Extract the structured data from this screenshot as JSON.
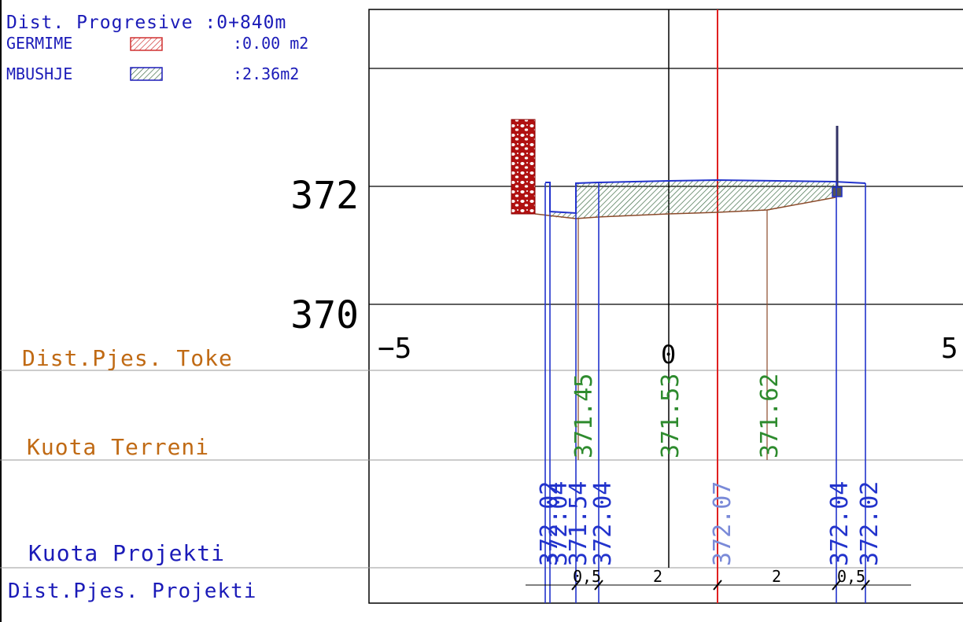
{
  "legend": {
    "dist_progresive": "Dist. Progresive :0+840m",
    "germime_label": "GERMIME",
    "germime_value": ":0.00 m2",
    "mbushje_label": "MBUSHJE",
    "mbushje_value": ":2.36m2"
  },
  "axis": {
    "elev_372": "372",
    "elev_370": "370",
    "off_neg5": "−5",
    "off_0": "0",
    "off_5": "5"
  },
  "rows": {
    "dist_toke": "Dist.Pjes. Toke",
    "kuota_terreni": "Kuota Terreni",
    "kuota_projekti": "Kuota Projekti",
    "dist_projekti": "Dist.Pjes. Projekti"
  },
  "terrain_elevations": [
    "371.45",
    "371.53",
    "371.62"
  ],
  "project_elevations": [
    "372.02",
    "372.04",
    "371.54",
    "372.04",
    "372.07",
    "372.04",
    "372.02"
  ],
  "project_distances": [
    "0,5",
    "2",
    "2",
    "0,5"
  ],
  "colors": {
    "legend_blue": "#1b1bb8",
    "row_orange": "#c06a14",
    "terrain_green": "#2e8b2e",
    "project_blue": "#2233cc",
    "axis_red": "#e02020",
    "curb_red": "#b01010",
    "fill_green": "#3d6b45",
    "terrain_brown": "#8b4a2a"
  }
}
